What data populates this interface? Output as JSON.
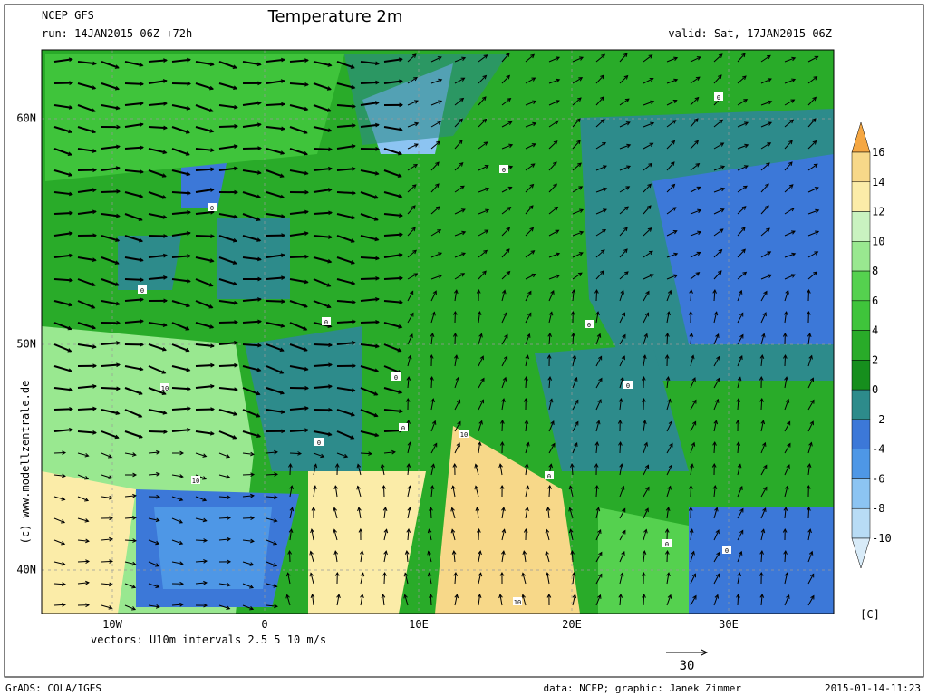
{
  "header": {
    "model": "NCEP GFS",
    "run": "run: 14JAN2015 06Z +72h",
    "title": "Temperature 2m",
    "valid": "valid: Sat, 17JAN2015 06Z"
  },
  "axes": {
    "lat_labels": [
      "60N",
      "50N",
      "40N"
    ],
    "lon_labels": [
      "10W",
      "0",
      "10E",
      "20E",
      "30E"
    ]
  },
  "colorbar": {
    "levels": [
      16,
      14,
      12,
      10,
      8,
      6,
      4,
      2,
      0,
      -2,
      -4,
      -6,
      -8,
      -10
    ],
    "unit": "[C]",
    "colors": [
      "#f5a742",
      "#f7d889",
      "#fbeca8",
      "#c9f2c0",
      "#99e890",
      "#55d14f",
      "#3fc43b",
      "#29ab29",
      "#168e1d",
      "#2d8b8b",
      "#3c78d8",
      "#4e97e6",
      "#8cc4f2",
      "#b8dcf5",
      "#d8ebf8"
    ]
  },
  "contour_labels": [
    "0",
    "0",
    "0",
    "0",
    "0",
    "0",
    "0",
    "0",
    "0",
    "10",
    "10",
    "10",
    "10",
    "0",
    "0",
    "0",
    "0"
  ],
  "footer": {
    "vectors": "vectors: U10m intervals 2.5 5 10 m/s",
    "reference": "30",
    "grads": "GrADS: COLA/IGES",
    "credit": "data: NCEP; graphic: Janek Zimmer",
    "timestamp": "2015-01-14-11:23",
    "watermark": "(c) www.modellzentrale.de"
  }
}
